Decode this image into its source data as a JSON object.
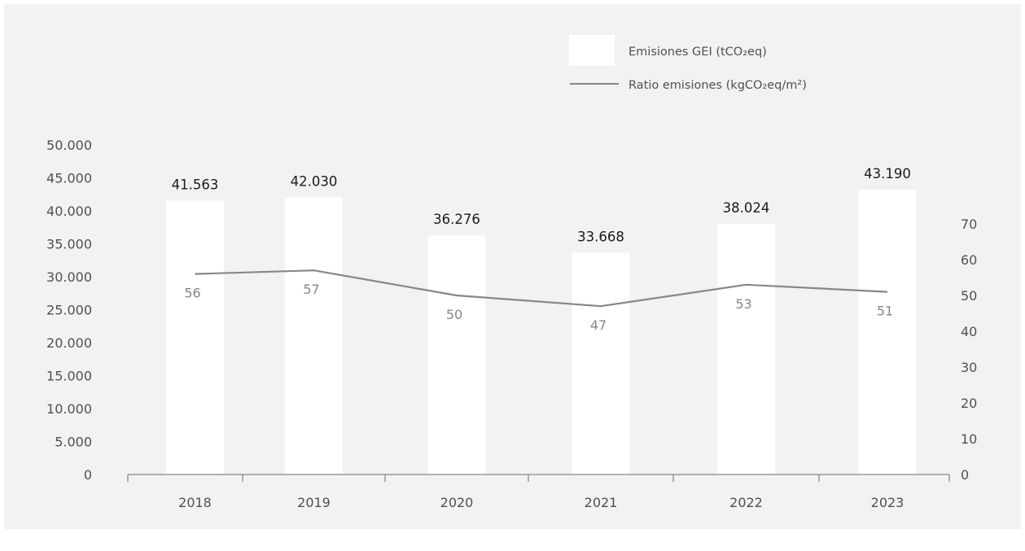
{
  "chart_data": {
    "type": "bar",
    "categories": [
      "2018",
      "2019",
      "2020",
      "2021",
      "2022",
      "2023"
    ],
    "bar_series": {
      "name": "Emisiones GEI (tCO₂eq)",
      "values": [
        41563,
        42030,
        36276,
        33668,
        38024,
        43190
      ],
      "value_labels": [
        "41.563",
        "42.030",
        "36.276",
        "33.668",
        "38.024",
        "43.190"
      ],
      "color": "#ffffff"
    },
    "line_series": {
      "name": "Ratio emisiones (kgCO₂eq/m²)",
      "values": [
        56,
        57,
        50,
        47,
        53,
        51
      ],
      "value_labels": [
        "56",
        "57",
        "50",
        "47",
        "53",
        "51"
      ],
      "color": "#878787"
    },
    "y_left": {
      "min": 0,
      "max": 50000,
      "ticks": [
        0,
        5000,
        10000,
        15000,
        20000,
        25000,
        30000,
        35000,
        40000,
        45000,
        50000
      ],
      "tick_labels": [
        "0",
        "5.000",
        "10.000",
        "15.000",
        "20.000",
        "25.000",
        "30.000",
        "35.000",
        "40.000",
        "45.000",
        "50.000"
      ]
    },
    "y_right": {
      "min": 0,
      "max": 70,
      "ticks": [
        0,
        10,
        20,
        30,
        40,
        50,
        60,
        70
      ],
      "tick_labels": [
        "0",
        "10",
        "20",
        "30",
        "40",
        "50",
        "60",
        "70"
      ]
    },
    "legend": {
      "placement": "top-right",
      "bar_label": "Emisiones GEI (tCO₂eq)",
      "line_label": "Ratio emisiones (kgCO₂eq/m²)"
    },
    "grid": false,
    "background_color": "#f2f2f2",
    "text_color": "#505050",
    "axis_color": "#999999"
  }
}
